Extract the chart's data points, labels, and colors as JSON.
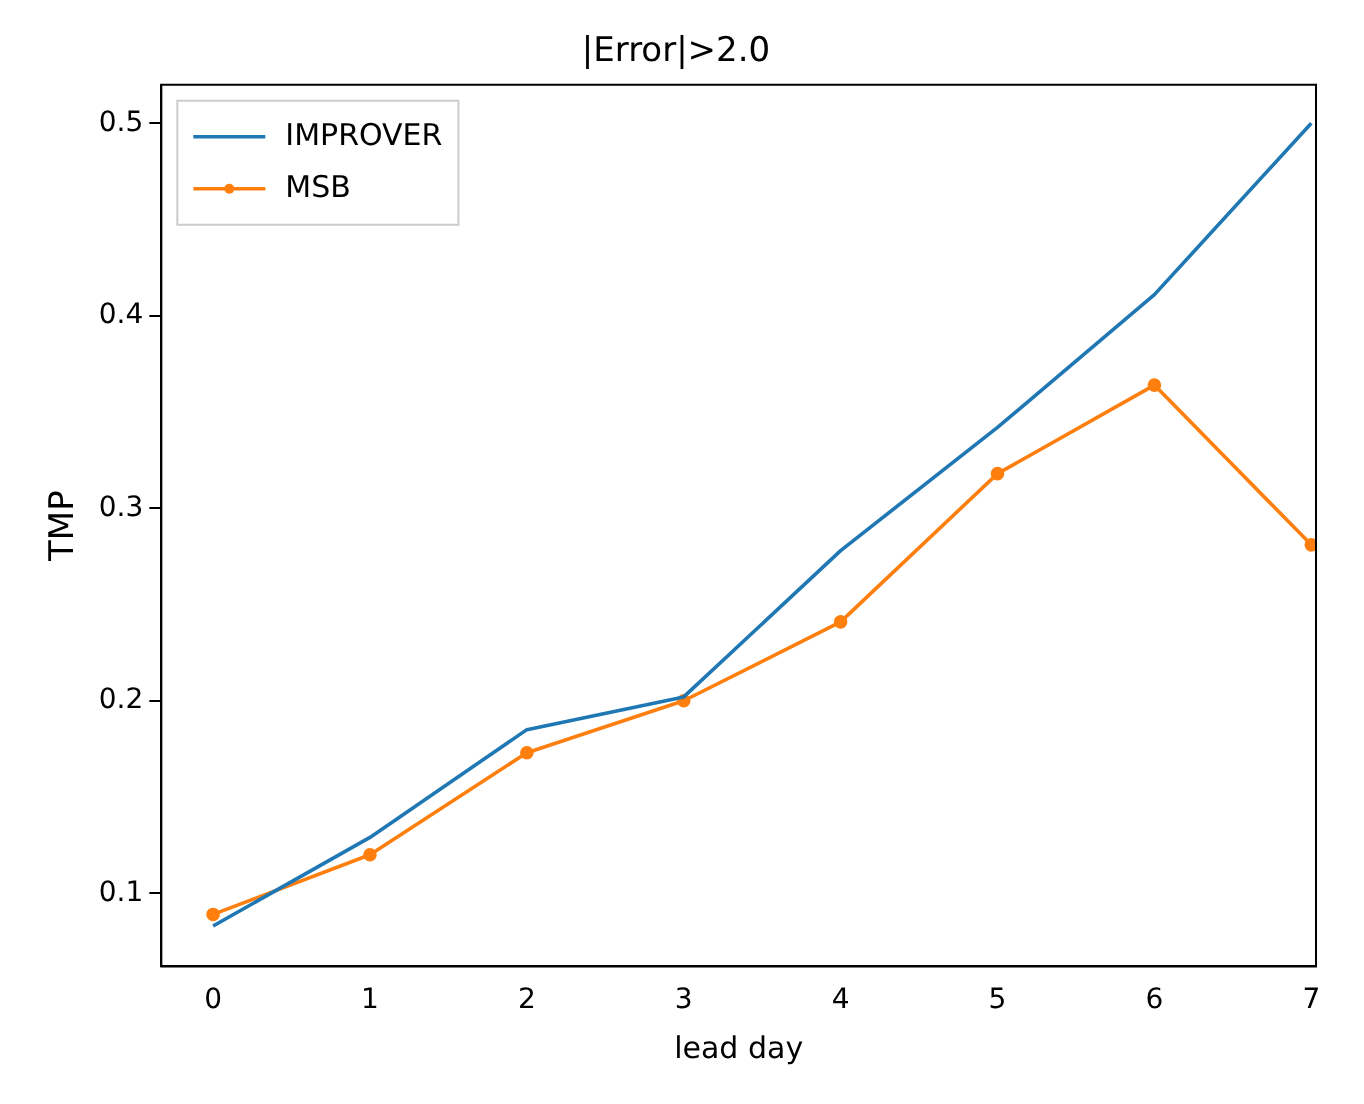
{
  "chart_data": {
    "type": "line",
    "title": "|Error|>2.0",
    "xlabel": "lead day",
    "ylabel": "TMP",
    "x": [
      0,
      1,
      2,
      3,
      4,
      5,
      6,
      7
    ],
    "series": [
      {
        "name": "IMPROVER",
        "color": "#1f77b4",
        "values": [
          0.083,
          0.129,
          0.185,
          0.202,
          0.278,
          0.342,
          0.411,
          0.5
        ],
        "marker": "none"
      },
      {
        "name": "MSB",
        "color": "#ff7f0e",
        "values": [
          0.089,
          0.12,
          0.173,
          0.2,
          0.241,
          0.318,
          0.364,
          0.281
        ],
        "marker": "circle"
      }
    ],
    "xlim": [
      -0.33,
      7.03
    ],
    "xticks": [
      0,
      1,
      2,
      3,
      4,
      5,
      6,
      7
    ],
    "ylim": [
      0.062,
      0.52
    ],
    "yticks": [
      0.1,
      0.2,
      0.3,
      0.4,
      0.5
    ],
    "grid": false,
    "legend": "top left"
  }
}
